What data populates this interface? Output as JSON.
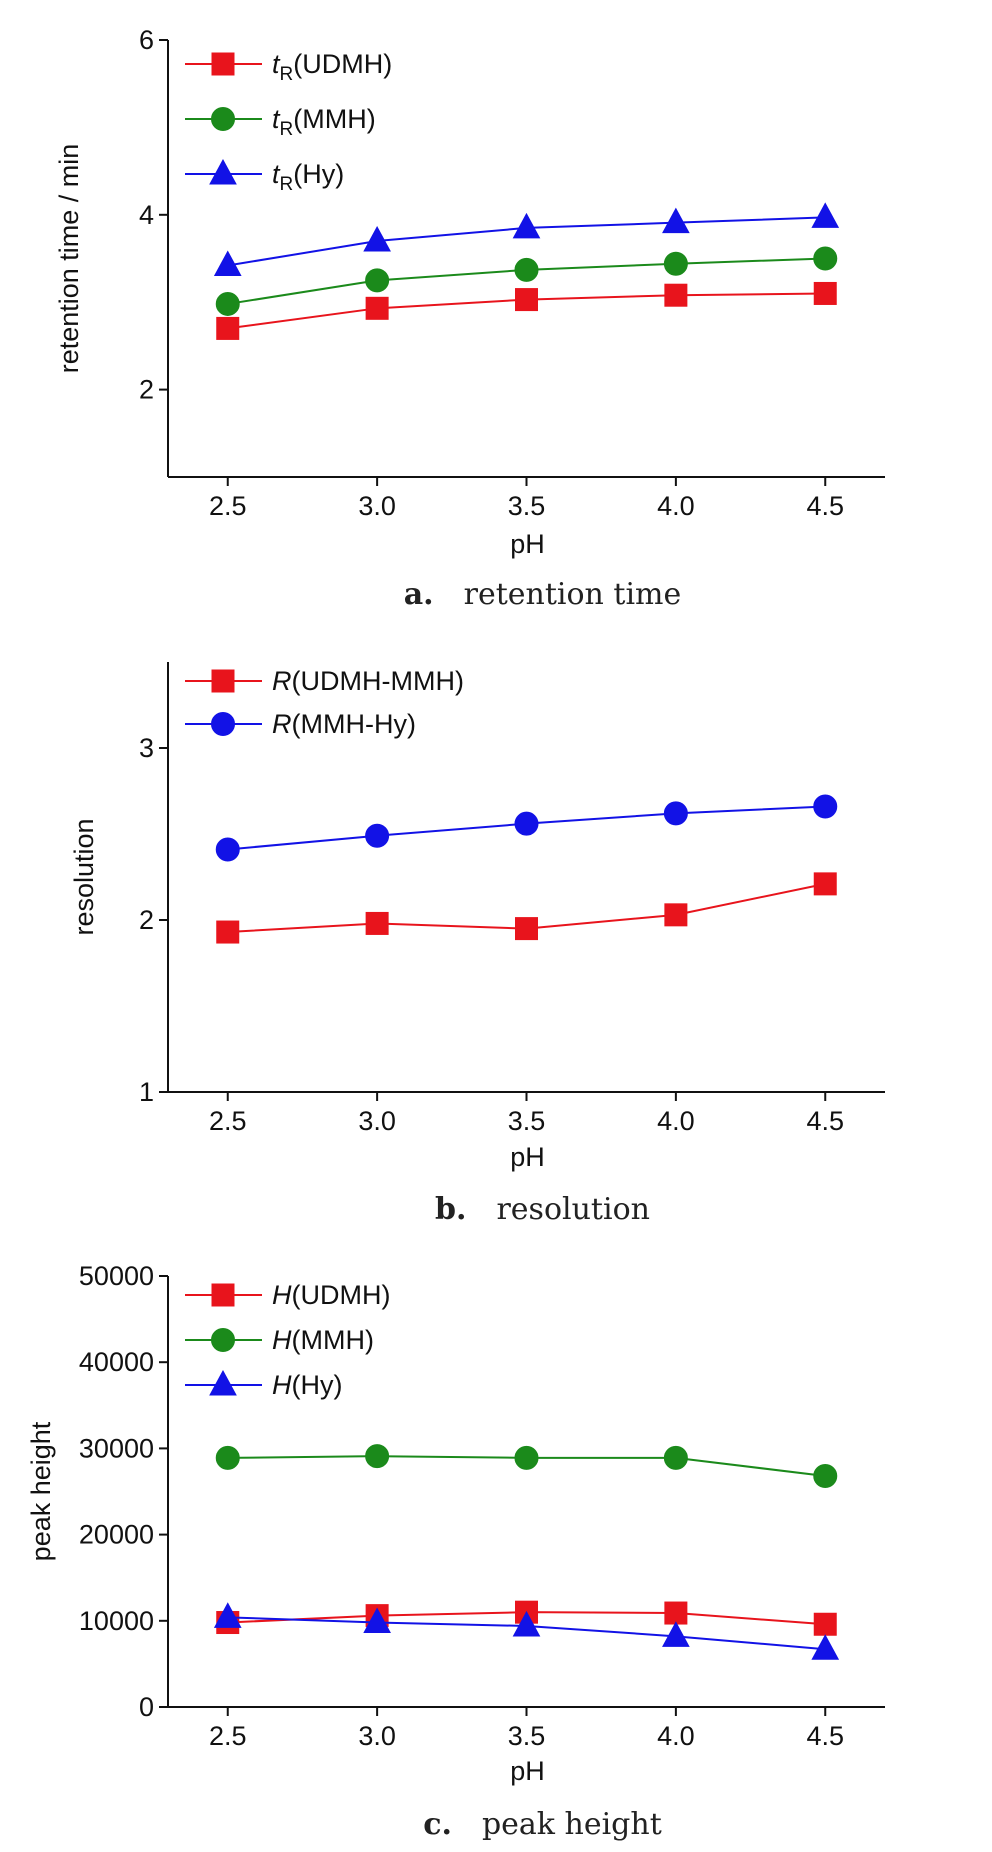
{
  "chart_data": [
    {
      "type": "line",
      "caption_letter": "a.",
      "caption_text": "retention time",
      "xlabel": "pH",
      "ylabel": "retention time / min",
      "x": [
        2.5,
        3.0,
        3.5,
        4.0,
        4.5
      ],
      "xtick_labels": [
        "2.5",
        "3.0",
        "3.5",
        "4.0",
        "4.5"
      ],
      "xlim": [
        2.3,
        4.7
      ],
      "ylim": [
        1,
        6
      ],
      "yticks": [
        2,
        4,
        6
      ],
      "ytick_labels": [
        "2",
        "4",
        "6"
      ],
      "legend": "top-left",
      "series": [
        {
          "name_italic": "t",
          "name_sub": "R",
          "name_rest": "(UDMH)",
          "color": "#e8141c",
          "marker": "square",
          "values": [
            2.7,
            2.93,
            3.03,
            3.08,
            3.1
          ]
        },
        {
          "name_italic": "t",
          "name_sub": "R",
          "name_rest": "(MMH)",
          "color": "#1b8a1b",
          "marker": "circle",
          "values": [
            2.98,
            3.25,
            3.37,
            3.44,
            3.5
          ]
        },
        {
          "name_italic": "t",
          "name_sub": "R",
          "name_rest": "(Hy)",
          "color": "#1212e6",
          "marker": "triangle",
          "values": [
            3.42,
            3.7,
            3.85,
            3.91,
            3.97
          ]
        }
      ]
    },
    {
      "type": "line",
      "caption_letter": "b.",
      "caption_text": "resolution",
      "xlabel": "pH",
      "ylabel": "resolution",
      "x": [
        2.5,
        3.0,
        3.5,
        4.0,
        4.5
      ],
      "xtick_labels": [
        "2.5",
        "3.0",
        "3.5",
        "4.0",
        "4.5"
      ],
      "xlim": [
        2.3,
        4.7
      ],
      "ylim": [
        1,
        3.5
      ],
      "yticks": [
        1,
        2,
        3
      ],
      "ytick_labels": [
        "1",
        "2",
        "3"
      ],
      "legend": "top-left",
      "series": [
        {
          "name_italic": "R",
          "name_sub": "",
          "name_rest": "(UDMH-MMH)",
          "color": "#e8141c",
          "marker": "square",
          "values": [
            1.93,
            1.98,
            1.95,
            2.03,
            2.21
          ]
        },
        {
          "name_italic": "R",
          "name_sub": "",
          "name_rest": "(MMH-Hy)",
          "color": "#1212e6",
          "marker": "circle",
          "values": [
            2.41,
            2.49,
            2.56,
            2.62,
            2.66
          ]
        }
      ]
    },
    {
      "type": "line",
      "caption_letter": "c.",
      "caption_text": "peak height",
      "xlabel": "pH",
      "ylabel": "peak height",
      "x": [
        2.5,
        3.0,
        3.5,
        4.0,
        4.5
      ],
      "xtick_labels": [
        "2.5",
        "3.0",
        "3.5",
        "4.0",
        "4.5"
      ],
      "xlim": [
        2.3,
        4.7
      ],
      "ylim": [
        0,
        50000
      ],
      "yticks": [
        0,
        10000,
        20000,
        30000,
        40000,
        50000
      ],
      "ytick_labels": [
        "0",
        "10000",
        "20000",
        "30000",
        "40000",
        "50000"
      ],
      "legend": "top-left",
      "series": [
        {
          "name_italic": "H",
          "name_sub": "",
          "name_rest": "(UDMH)",
          "color": "#e8141c",
          "marker": "square",
          "values": [
            9800,
            10600,
            11000,
            10900,
            9600
          ]
        },
        {
          "name_italic": "H",
          "name_sub": "",
          "name_rest": "(MMH)",
          "color": "#1b8a1b",
          "marker": "circle",
          "values": [
            28900,
            29100,
            28900,
            28900,
            26800
          ]
        },
        {
          "name_italic": "H",
          "name_sub": "",
          "name_rest": "(Hy)",
          "color": "#1212e6",
          "marker": "triangle",
          "values": [
            10400,
            9800,
            9400,
            8200,
            6700
          ]
        }
      ]
    }
  ]
}
